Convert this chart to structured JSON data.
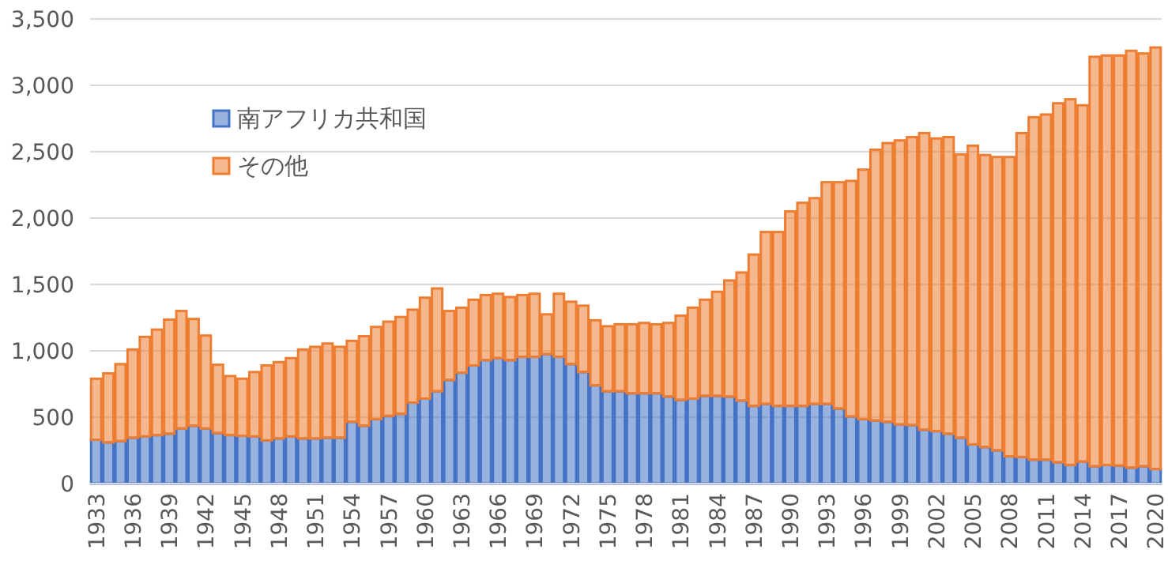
{
  "chart_data": {
    "type": "bar",
    "stacked": true,
    "grid": "y",
    "legend": "top left",
    "categories": [
      "1933",
      null,
      null,
      "1936",
      null,
      null,
      "1939",
      null,
      null,
      "1942",
      null,
      null,
      "1945",
      null,
      null,
      "1948",
      null,
      null,
      "1951",
      null,
      null,
      "1954",
      null,
      null,
      "1957",
      null,
      null,
      "1960",
      null,
      null,
      "1963",
      null,
      null,
      "1966",
      null,
      null,
      "1969",
      null,
      null,
      "1972",
      null,
      null,
      "1975",
      null,
      null,
      "1978",
      null,
      null,
      "1981",
      null,
      null,
      "1984",
      null,
      null,
      "1987",
      null,
      null,
      "1990",
      null,
      null,
      "1993",
      null,
      null,
      "1996",
      null,
      null,
      "1999",
      null,
      null,
      "2002",
      null,
      null,
      "2005",
      null,
      null,
      "2008",
      null,
      null,
      "2011",
      null,
      null,
      "2014",
      null,
      null,
      "2017",
      null,
      null,
      "2020"
    ],
    "ylim": [
      0,
      3500
    ],
    "yticks": [
      0,
      500,
      {
        "value": 1000,
        "label": "1,000"
      },
      {
        "value": 1500,
        "label": "1,500"
      },
      {
        "value": 2000,
        "label": "2,000"
      },
      {
        "value": 2500,
        "label": "2,500"
      },
      {
        "value": 3000,
        "label": "3,000"
      },
      {
        "value": 3500,
        "label": "3,500"
      }
    ],
    "series": [
      {
        "name": "南アフリカ共和国",
        "color": "#4472c4",
        "values": [
          330,
          310,
          320,
          345,
          355,
          365,
          375,
          415,
          435,
          415,
          380,
          365,
          360,
          355,
          325,
          340,
          355,
          340,
          340,
          345,
          345,
          465,
          435,
          485,
          510,
          525,
          610,
          640,
          695,
          780,
          835,
          890,
          930,
          945,
          930,
          955,
          955,
          975,
          955,
          900,
          840,
          740,
          695,
          695,
          680,
          680,
          680,
          655,
          630,
          640,
          660,
          660,
          655,
          625,
          585,
          600,
          585,
          585,
          585,
          600,
          600,
          565,
          505,
          485,
          475,
          465,
          445,
          440,
          405,
          395,
          375,
          345,
          295,
          275,
          250,
          205,
          200,
          180,
          180,
          160,
          140,
          165,
          130,
          140,
          135,
          120,
          130,
          110
        ]
      },
      {
        "name": "その他",
        "color": "#ed7d31",
        "values": [
          460,
          520,
          580,
          665,
          750,
          795,
          860,
          885,
          805,
          700,
          515,
          445,
          430,
          485,
          565,
          575,
          590,
          670,
          690,
          710,
          685,
          610,
          675,
          695,
          710,
          730,
          700,
          760,
          775,
          520,
          490,
          495,
          490,
          485,
          475,
          465,
          475,
          300,
          475,
          470,
          500,
          490,
          490,
          505,
          520,
          530,
          520,
          555,
          635,
          685,
          725,
          785,
          875,
          965,
          1140,
          1295,
          1310,
          1465,
          1530,
          1550,
          1670,
          1705,
          1775,
          1880,
          2040,
          2100,
          2140,
          2170,
          2235,
          2205,
          2235,
          2135,
          2250,
          2200,
          2210,
          2255,
          2440,
          2580,
          2600,
          2705,
          2755,
          2685,
          3085,
          3085,
          3090,
          3140,
          3110,
          3175
        ]
      }
    ]
  }
}
